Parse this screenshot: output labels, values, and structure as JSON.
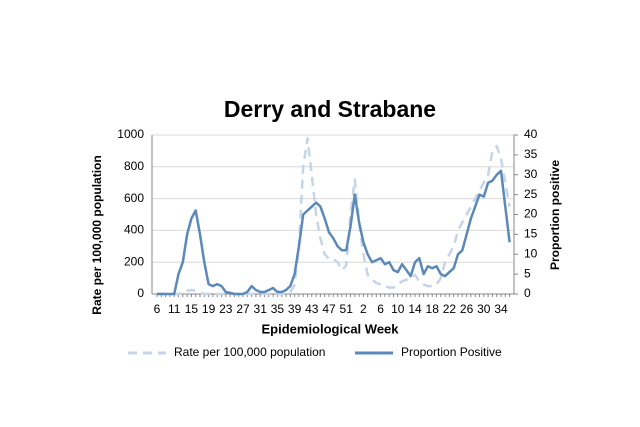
{
  "chart_data": {
    "type": "line",
    "title": "Derry and Strabane",
    "x_label": "Epidemiological Week",
    "y_label": "Rate per 100,000 population",
    "y2_label": "Proportion positive",
    "categories": [
      "6",
      null,
      null,
      null,
      "11",
      null,
      null,
      null,
      "15",
      null,
      null,
      null,
      "19",
      null,
      null,
      null,
      "23",
      null,
      null,
      null,
      "27",
      null,
      null,
      null,
      "31",
      null,
      null,
      null,
      "35",
      null,
      null,
      null,
      "39",
      null,
      null,
      null,
      "43",
      null,
      null,
      null,
      "47",
      null,
      null,
      null,
      "51",
      null,
      null,
      null,
      "2",
      null,
      null,
      null,
      "6",
      null,
      null,
      null,
      "10",
      null,
      null,
      null,
      "14",
      null,
      null,
      null,
      "18",
      null,
      null,
      null,
      "22",
      null,
      null,
      null,
      "26",
      null,
      null,
      null,
      "30",
      null,
      null,
      null,
      "34",
      null,
      null
    ],
    "series": [
      {
        "name": "Rate per 100,000 population",
        "color": "#c6d4e8",
        "dashed": true,
        "axis": "y",
        "values": [
          0,
          0,
          0,
          0,
          0,
          0,
          10,
          20,
          25,
          20,
          10,
          0,
          0,
          0,
          0,
          0,
          0,
          0,
          0,
          0,
          0,
          0,
          0,
          0,
          0,
          0,
          0,
          0,
          0,
          0,
          0,
          10,
          60,
          300,
          800,
          980,
          750,
          500,
          350,
          250,
          220,
          220,
          200,
          150,
          180,
          500,
          720,
          450,
          250,
          120,
          90,
          70,
          60,
          50,
          40,
          40,
          60,
          80,
          90,
          100,
          120,
          80,
          60,
          50,
          50,
          60,
          100,
          200,
          250,
          300,
          400,
          450,
          500,
          550,
          600,
          650,
          700,
          750,
          900,
          930,
          850,
          700,
          550
        ]
      },
      {
        "name": "Proportion Positive",
        "color": "#5b89ba",
        "dashed": false,
        "axis": "y2",
        "values": [
          0,
          0,
          0,
          0,
          0,
          5,
          8,
          15,
          19,
          21,
          15,
          8,
          2.5,
          2,
          2.5,
          2,
          0.5,
          0.3,
          0,
          0,
          0,
          0.5,
          2,
          1,
          0.5,
          0.5,
          1,
          1.5,
          0.5,
          0.5,
          1,
          2,
          5,
          12,
          20,
          21,
          22,
          23,
          22,
          19,
          15.5,
          14,
          12,
          11,
          11,
          17,
          25,
          18,
          13,
          10,
          8,
          8.5,
          9,
          7.5,
          8,
          6,
          5.5,
          7.5,
          6,
          4.5,
          8,
          9,
          5,
          7,
          6.5,
          7,
          5,
          4.5,
          5.5,
          6.5,
          10,
          11,
          15,
          19,
          22,
          25,
          24.5,
          28,
          28.5,
          30,
          31,
          22,
          13
        ]
      }
    ],
    "ylim": [
      0,
      1000
    ],
    "yticks": [
      0,
      200,
      400,
      600,
      800,
      1000
    ],
    "y2lim": [
      0,
      40
    ],
    "y2ticks": [
      0,
      5,
      10,
      15,
      20,
      25,
      30,
      35,
      40
    ],
    "grid": true,
    "legend": "bottom"
  }
}
